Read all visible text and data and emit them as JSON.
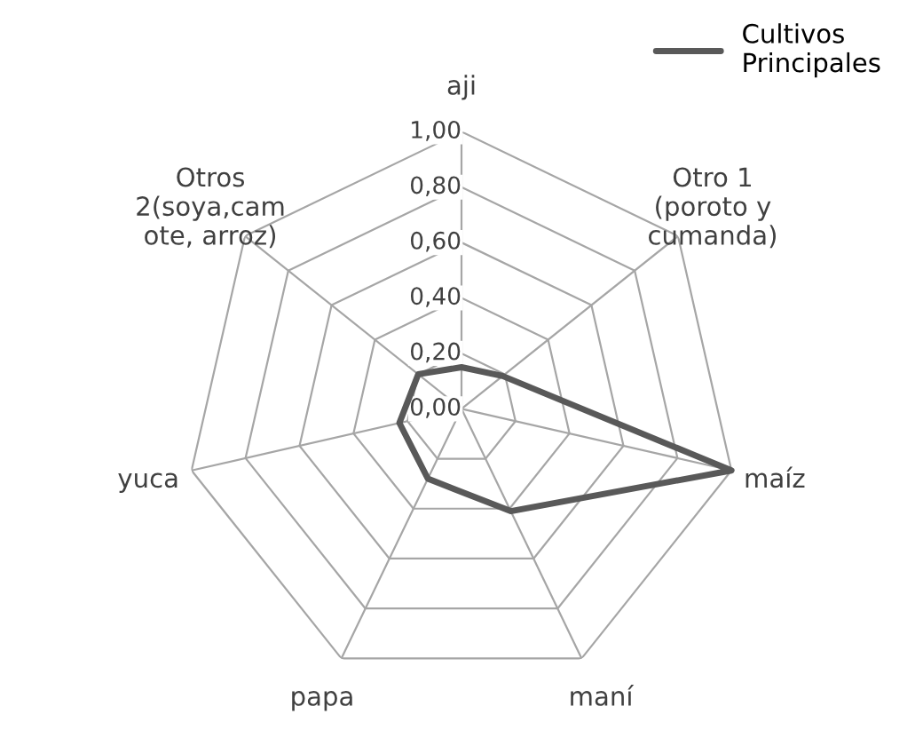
{
  "chart_data": {
    "type": "radar",
    "categories": [
      "aji",
      "Otro 1\n(poroto y\ncumanda)",
      "maíz",
      "maní",
      "papa",
      "yuca",
      "Otros\n2(soya,cam\note, arroz)"
    ],
    "series": [
      {
        "name": "Cultivos\nPrincipales",
        "color": "#595959",
        "values": [
          0.15,
          0.19,
          1.0,
          0.41,
          0.28,
          0.23,
          0.2
        ]
      }
    ],
    "ylim": [
      0,
      1
    ],
    "yticks": [
      {
        "value": 0,
        "label": "0,00"
      },
      {
        "value": 0.2,
        "label": "0,20"
      },
      {
        "value": 0.4,
        "label": "0,40"
      },
      {
        "value": 0.6,
        "label": "0,60"
      },
      {
        "value": 0.8,
        "label": "0,80"
      },
      {
        "value": 1,
        "label": "1,00"
      }
    ],
    "grid": true,
    "legend": "top right"
  }
}
